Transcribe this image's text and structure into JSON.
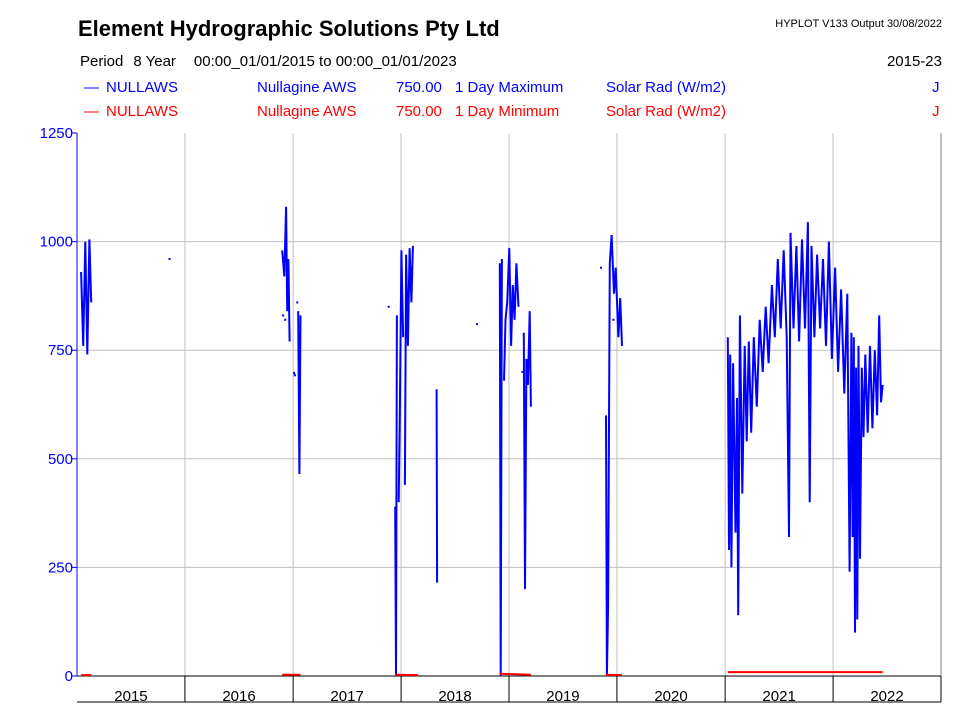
{
  "header": {
    "title": "Element Hydrographic Solutions Pty Ltd",
    "version": "HYPLOT V133  Output 30/08/2022",
    "period_label": "Period",
    "period_value": "8 Year",
    "date_range": "00:00_01/01/2015 to 00:00_01/01/2023",
    "range_code": "2015-23"
  },
  "legend": [
    {
      "swatch": "—",
      "site": "NULLAWS",
      "name": "Nullagine AWS",
      "var": "750.00",
      "stat": "1 Day Maximum",
      "units": "Solar Rad (W/m2)",
      "flag": "J",
      "color": "#0000ff"
    },
    {
      "swatch": "—",
      "site": "NULLAWS",
      "name": "Nullagine AWS",
      "var": "750.00",
      "stat": "1 Day Minimum",
      "units": "Solar Rad (W/m2)",
      "flag": "J",
      "color": "#ff0000"
    }
  ],
  "chart_data": {
    "type": "line",
    "x_range": [
      "2015-01-01",
      "2023-01-01"
    ],
    "ylim": [
      0,
      1250
    ],
    "y_ticks": [
      "0",
      "250",
      "500",
      "750",
      "1000",
      "1250"
    ],
    "x_ticks": [
      "2015",
      "2016",
      "2017",
      "2018",
      "2019",
      "2020",
      "2021",
      "2022"
    ],
    "grid": true,
    "axis_color": "#0000ff",
    "series": [
      {
        "name": "1 Day Maximum",
        "color": "#0000ff",
        "segments": [
          [
            [
              "2015-01-15",
              930
            ],
            [
              "2015-01-22",
              760
            ],
            [
              "2015-01-29",
              1000
            ],
            [
              "2015-02-05",
              740
            ],
            [
              "2015-02-12",
              1005
            ],
            [
              "2015-02-18",
              860
            ]
          ],
          [
            [
              "2016-11-25",
              980
            ],
            [
              "2016-12-02",
              920
            ],
            [
              "2016-12-08",
              1080
            ],
            [
              "2016-12-12",
              840
            ],
            [
              "2016-12-16",
              960
            ],
            [
              "2016-12-20",
              770
            ]
          ],
          [
            [
              "2017-01-03",
              700
            ],
            [
              "2017-01-08",
              690
            ]
          ],
          [
            [
              "2017-01-18",
              840
            ],
            [
              "2017-01-22",
              465
            ],
            [
              "2017-01-26",
              830
            ]
          ],
          [
            [
              "2017-12-12",
              390
            ],
            [
              "2017-12-15",
              0
            ],
            [
              "2017-12-18",
              830
            ]
          ],
          [
            [
              "2017-12-24",
              400
            ],
            [
              "2017-12-28",
              620
            ],
            [
              "2018-01-02",
              980
            ],
            [
              "2018-01-08",
              780
            ]
          ],
          [
            [
              "2018-01-14",
              440
            ],
            [
              "2018-01-18",
              970
            ],
            [
              "2018-01-24",
              760
            ],
            [
              "2018-01-30",
              985
            ],
            [
              "2018-02-05",
              860
            ],
            [
              "2018-02-10",
              990
            ]
          ],
          [
            [
              "2018-05-01",
              660
            ],
            [
              "2018-05-03",
              215
            ]
          ],
          [
            [
              "2018-12-01",
              950
            ],
            [
              "2018-12-04",
              0
            ],
            [
              "2018-12-08",
              960
            ]
          ],
          [
            [
              "2018-12-15",
              680
            ],
            [
              "2018-12-20",
              820
            ],
            [
              "2018-12-26",
              860
            ],
            [
              "2019-01-02",
              985
            ],
            [
              "2019-01-08",
              760
            ],
            [
              "2019-01-14",
              900
            ],
            [
              "2019-01-20",
              820
            ],
            [
              "2019-01-26",
              950
            ],
            [
              "2019-02-02",
              850
            ]
          ],
          [
            [
              "2019-02-20",
              790
            ],
            [
              "2019-02-24",
              200
            ],
            [
              "2019-03-01",
              730
            ],
            [
              "2019-03-06",
              670
            ],
            [
              "2019-03-12",
              840
            ],
            [
              "2019-03-16",
              620
            ]
          ],
          [
            [
              "2019-11-25",
              600
            ],
            [
              "2019-11-28",
              0
            ],
            [
              "2019-12-02",
              160
            ],
            [
              "2019-12-08",
              950
            ],
            [
              "2019-12-14",
              1015
            ],
            [
              "2019-12-22",
              880
            ],
            [
              "2019-12-28",
              940
            ],
            [
              "2020-01-06",
              780
            ],
            [
              "2020-01-12",
              870
            ],
            [
              "2020-01-18",
              760
            ]
          ],
          [
            [
              "2021-01-10",
              780
            ],
            [
              "2021-01-14",
              290
            ],
            [
              "2021-01-18",
              740
            ],
            [
              "2021-01-22",
              250
            ],
            [
              "2021-01-28",
              720
            ],
            [
              "2021-02-05",
              330
            ],
            [
              "2021-02-10",
              640
            ],
            [
              "2021-02-14",
              140
            ],
            [
              "2021-02-20",
              830
            ],
            [
              "2021-02-28",
              420
            ],
            [
              "2021-03-08",
              760
            ],
            [
              "2021-03-15",
              540
            ],
            [
              "2021-03-22",
              770
            ],
            [
              "2021-03-30",
              560
            ],
            [
              "2021-04-08",
              780
            ],
            [
              "2021-04-18",
              620
            ],
            [
              "2021-04-28",
              820
            ],
            [
              "2021-05-08",
              700
            ],
            [
              "2021-05-18",
              850
            ],
            [
              "2021-05-28",
              720
            ],
            [
              "2021-06-08",
              900
            ],
            [
              "2021-06-18",
              780
            ],
            [
              "2021-06-28",
              960
            ],
            [
              "2021-07-08",
              800
            ],
            [
              "2021-07-18",
              980
            ],
            [
              "2021-07-28",
              780
            ],
            [
              "2021-08-05",
              320
            ],
            [
              "2021-08-10",
              1020
            ],
            [
              "2021-08-20",
              800
            ],
            [
              "2021-08-30",
              990
            ],
            [
              "2021-09-08",
              770
            ],
            [
              "2021-09-18",
              1005
            ],
            [
              "2021-09-28",
              800
            ],
            [
              "2021-10-08",
              1045
            ],
            [
              "2021-10-14",
              400
            ],
            [
              "2021-10-20",
              990
            ],
            [
              "2021-10-30",
              780
            ],
            [
              "2021-11-08",
              970
            ],
            [
              "2021-11-18",
              800
            ],
            [
              "2021-11-28",
              960
            ],
            [
              "2021-12-08",
              760
            ],
            [
              "2021-12-18",
              1000
            ],
            [
              "2021-12-28",
              730
            ],
            [
              "2022-01-08",
              940
            ],
            [
              "2022-01-18",
              700
            ],
            [
              "2022-01-28",
              890
            ],
            [
              "2022-02-08",
              650
            ],
            [
              "2022-02-18",
              880
            ],
            [
              "2022-02-26",
              240
            ],
            [
              "2022-03-04",
              790
            ],
            [
              "2022-03-08",
              320
            ],
            [
              "2022-03-12",
              780
            ],
            [
              "2022-03-16",
              100
            ],
            [
              "2022-03-20",
              710
            ],
            [
              "2022-03-24",
              130
            ],
            [
              "2022-03-28",
              760
            ],
            [
              "2022-04-02",
              270
            ],
            [
              "2022-04-08",
              710
            ],
            [
              "2022-04-14",
              550
            ],
            [
              "2022-04-20",
              740
            ],
            [
              "2022-04-28",
              560
            ],
            [
              "2022-05-06",
              760
            ],
            [
              "2022-05-14",
              570
            ],
            [
              "2022-05-22",
              750
            ],
            [
              "2022-05-30",
              600
            ],
            [
              "2022-06-06",
              830
            ],
            [
              "2022-06-12",
              630
            ],
            [
              "2022-06-18",
              670
            ]
          ]
        ],
        "points": [
          [
            "2015-11-10",
            960
          ],
          [
            "2016-11-28",
            830
          ],
          [
            "2016-12-05",
            820
          ],
          [
            "2017-01-15",
            860
          ],
          [
            "2017-11-20",
            850
          ],
          [
            "2018-09-15",
            810
          ],
          [
            "2019-02-15",
            700
          ],
          [
            "2019-11-08",
            940
          ],
          [
            "2019-12-20",
            820
          ]
        ]
      },
      {
        "name": "1 Day Minimum",
        "color": "#ff0000",
        "segments": [
          [
            [
              "2015-01-15",
              2
            ],
            [
              "2015-02-18",
              2
            ]
          ],
          [
            [
              "2016-11-25",
              3
            ],
            [
              "2017-01-26",
              3
            ]
          ],
          [
            [
              "2017-12-12",
              3
            ],
            [
              "2018-02-28",
              2
            ]
          ],
          [
            [
              "2018-12-01",
              5
            ],
            [
              "2019-03-16",
              3
            ]
          ],
          [
            [
              "2019-11-25",
              3
            ],
            [
              "2020-01-18",
              2
            ]
          ],
          [
            [
              "2021-01-10",
              9
            ],
            [
              "2022-06-18",
              9
            ]
          ]
        ],
        "points": []
      }
    ]
  }
}
